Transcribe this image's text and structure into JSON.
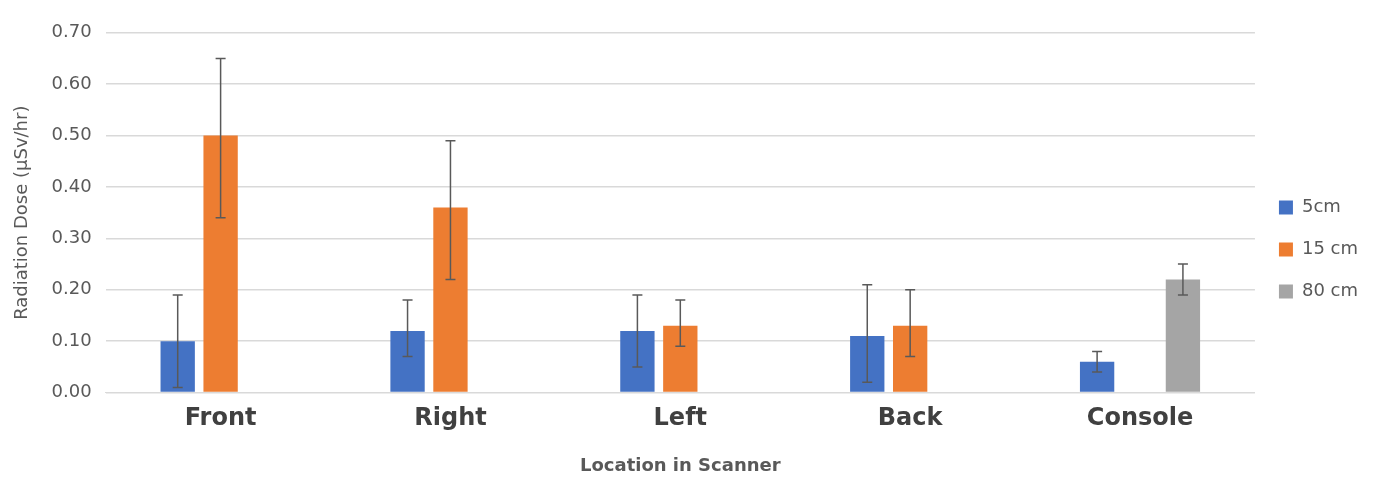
{
  "chart_data": {
    "type": "bar",
    "xlabel": "Location in Scanner",
    "ylabel": "Radiation Dose (µSv/hr)",
    "categories": [
      "Front",
      "Right",
      "Left",
      "Back",
      "Console"
    ],
    "series": [
      {
        "name": "5cm",
        "color": "#4472c4",
        "values": [
          0.1,
          0.12,
          0.12,
          0.11,
          0.06
        ],
        "errors": [
          [
            0.01,
            0.19
          ],
          [
            0.07,
            0.18
          ],
          [
            0.05,
            0.19
          ],
          [
            0.02,
            0.21
          ],
          [
            0.04,
            0.08
          ]
        ]
      },
      {
        "name": "15 cm",
        "color": "#ed7d31",
        "values": [
          0.5,
          0.36,
          0.13,
          0.13,
          null
        ],
        "errors": [
          [
            0.34,
            0.65
          ],
          [
            0.22,
            0.49
          ],
          [
            0.09,
            0.18
          ],
          [
            0.07,
            0.2
          ],
          null
        ]
      },
      {
        "name": "80 cm",
        "color": "#a5a5a5",
        "values": [
          null,
          null,
          null,
          null,
          0.22
        ],
        "errors": [
          null,
          null,
          null,
          null,
          [
            0.19,
            0.25
          ]
        ]
      }
    ],
    "ylim": [
      0,
      0.7
    ],
    "yticks": [
      {
        "value": 0,
        "label": "0.00"
      },
      {
        "value": 0.1,
        "label": "0.10"
      },
      {
        "value": 0.2,
        "label": "0.20"
      },
      {
        "value": 0.3,
        "label": "0.30"
      },
      {
        "value": 0.4,
        "label": "0.40"
      },
      {
        "value": 0.5,
        "label": "0.50"
      },
      {
        "value": 0.6,
        "label": "0.60"
      },
      {
        "value": 0.7,
        "label": "0.70"
      }
    ],
    "grid": "y",
    "legend": "right"
  }
}
